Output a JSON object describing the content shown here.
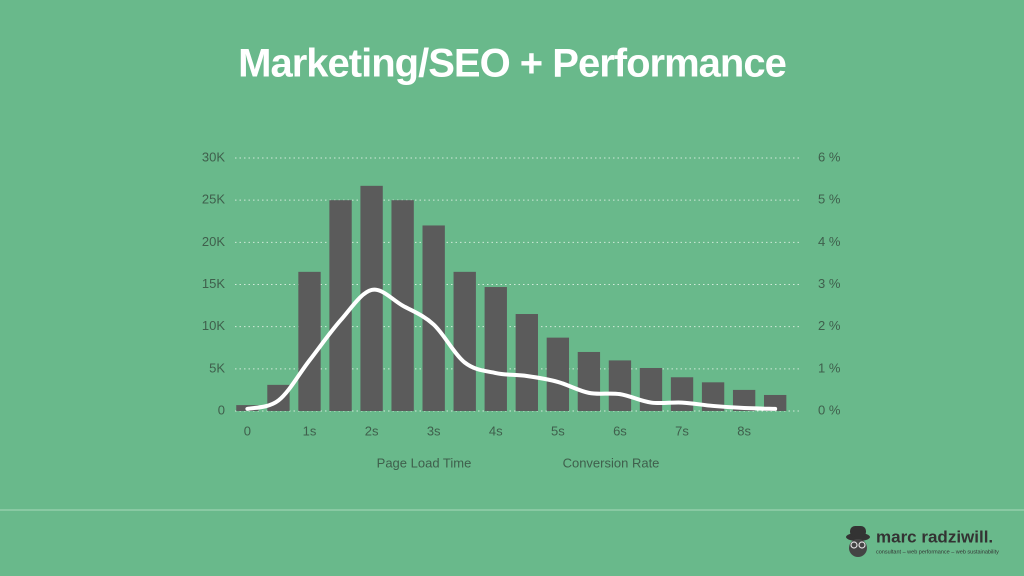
{
  "chart_data": {
    "type": "bar-line",
    "title": "Marketing/SEO + Performance",
    "x": [
      0,
      0.5,
      1,
      1.5,
      2,
      2.5,
      3,
      3.5,
      4,
      4.5,
      5,
      5.5,
      6,
      6.5,
      7,
      7.5,
      8,
      8.5
    ],
    "series": [
      {
        "name": "Page Load Time",
        "type": "bar",
        "color": "#5b5b5b",
        "values": [
          700,
          3100,
          16500,
          25000,
          26700,
          25000,
          22000,
          16500,
          14700,
          11500,
          8700,
          7000,
          6000,
          5100,
          4000,
          3400,
          2500,
          1900
        ]
      },
      {
        "name": "Conversion Rate",
        "type": "line",
        "axis": "y2",
        "color": "#ffffff",
        "values": [
          0.05,
          0.25,
          1.2,
          2.15,
          2.87,
          2.5,
          2.05,
          1.15,
          0.9,
          0.83,
          0.69,
          0.43,
          0.4,
          0.2,
          0.2,
          0.12,
          0.07,
          0.05
        ]
      }
    ],
    "xlim": [
      -0.2,
      8.9
    ],
    "xticks": [
      0,
      {
        "value": 1,
        "label": "1s"
      },
      {
        "value": 2,
        "label": "2s"
      },
      {
        "value": 3,
        "label": "3s"
      },
      {
        "value": 4,
        "label": "4s"
      },
      {
        "value": 5,
        "label": "5s"
      },
      {
        "value": 6,
        "label": "6s"
      },
      {
        "value": 7,
        "label": "7s"
      },
      {
        "value": 8,
        "label": "8s"
      }
    ],
    "ylim": [
      0,
      30000
    ],
    "yticks": [
      0,
      {
        "value": 5000,
        "label": "5K"
      },
      {
        "value": 10000,
        "label": "10K"
      },
      {
        "value": 15000,
        "label": "15K"
      },
      {
        "value": 20000,
        "label": "20K"
      },
      {
        "value": 25000,
        "label": "25K"
      },
      {
        "value": 30000,
        "label": "30K"
      }
    ],
    "y2lim": [
      0,
      6
    ],
    "y2ticks": [
      {
        "value": 0,
        "label": "0 %"
      },
      {
        "value": 1,
        "label": "1 %"
      },
      {
        "value": 2,
        "label": "2 %"
      },
      {
        "value": 3,
        "label": "3 %"
      },
      {
        "value": 4,
        "label": "4 %"
      },
      {
        "value": 5,
        "label": "5 %"
      },
      {
        "value": 6,
        "label": "6 %"
      }
    ],
    "grid": true
  },
  "footer": {
    "brand": "marc radziwill.",
    "tagline": "consultant – web performance – web sustainability"
  }
}
